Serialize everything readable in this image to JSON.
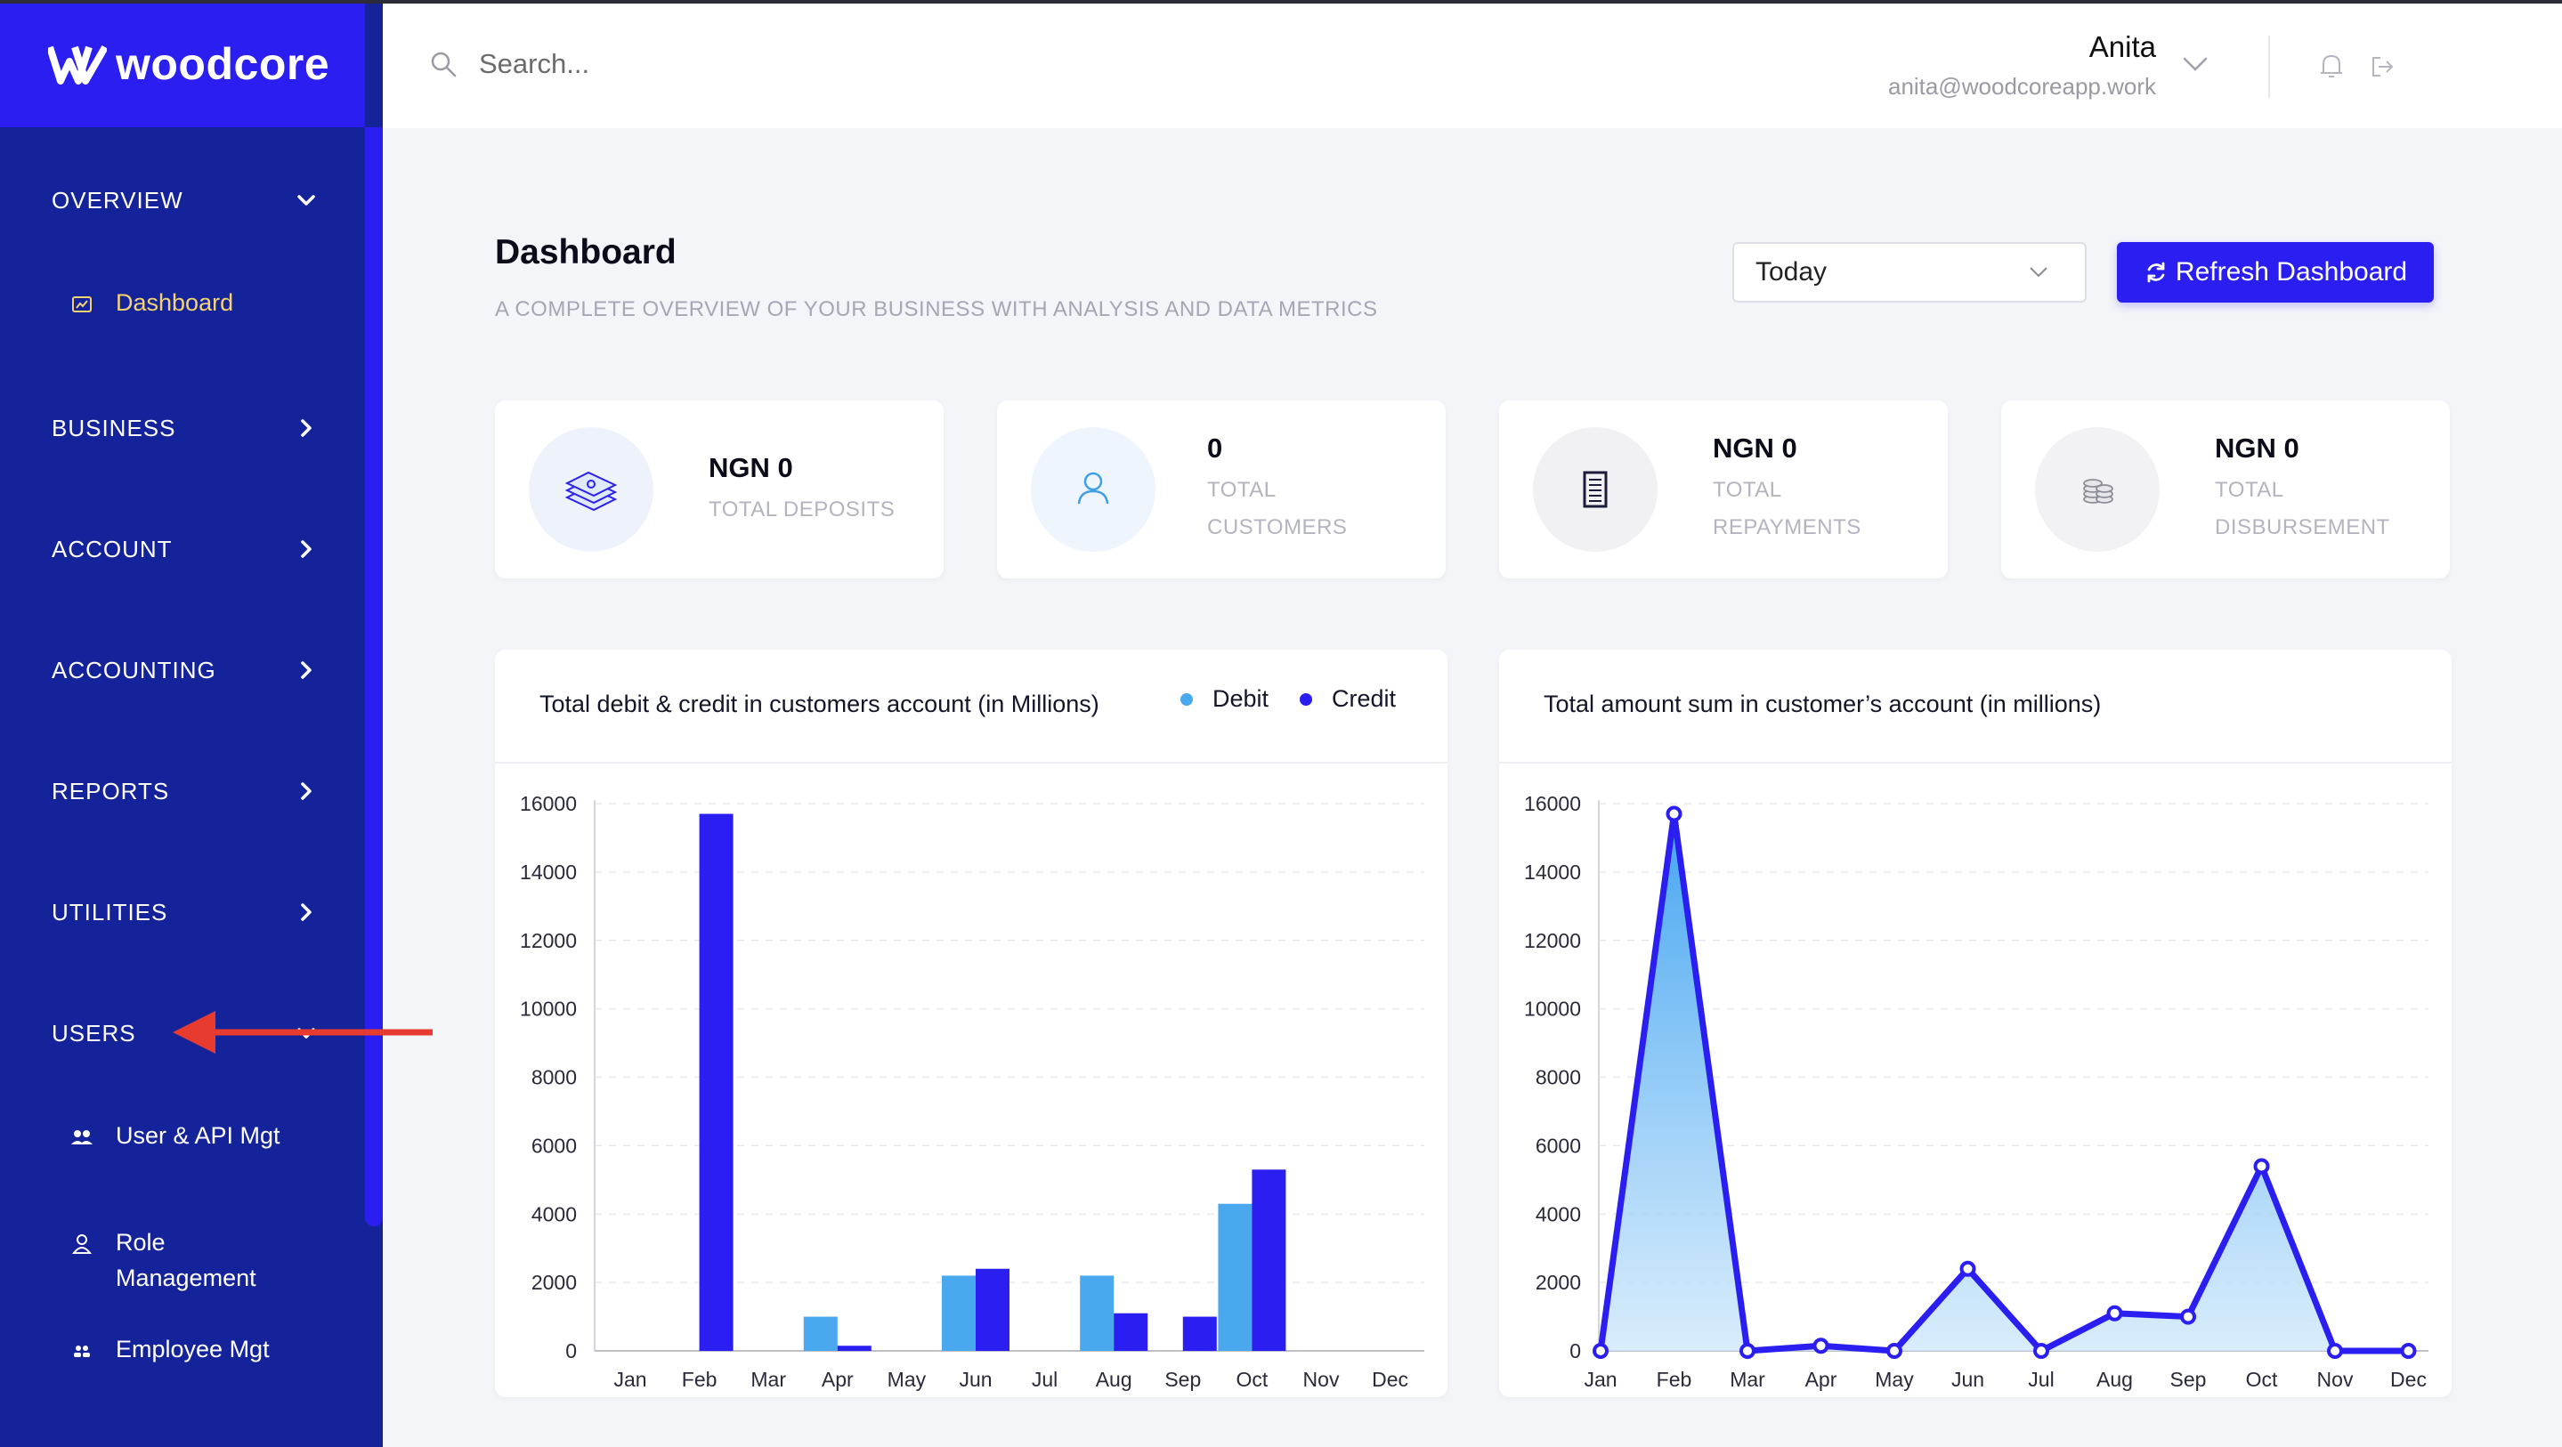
{
  "brand": {
    "name": "woodcore"
  },
  "sidebar": {
    "sections": [
      {
        "label": "OVERVIEW",
        "expanded": true
      },
      {
        "label": "BUSINESS",
        "expanded": false
      },
      {
        "label": "ACCOUNT",
        "expanded": false
      },
      {
        "label": "ACCOUNTING",
        "expanded": false
      },
      {
        "label": "REPORTS",
        "expanded": false
      },
      {
        "label": "UTILITIES",
        "expanded": false
      },
      {
        "label": "USERS",
        "expanded": true
      }
    ],
    "items": [
      {
        "label": "Dashboard",
        "icon": "chart-icon",
        "active": true
      },
      {
        "label": "User & API Mgt",
        "icon": "users-group-icon",
        "active": false
      },
      {
        "label": "Role Management",
        "icon": "user-role-icon",
        "active": false
      },
      {
        "label": "Employee Mgt",
        "icon": "employees-icon",
        "active": false
      }
    ]
  },
  "header": {
    "search_placeholder": "Search...",
    "user_name": "Anita",
    "user_email": "anita@woodcoreapp.work"
  },
  "page": {
    "title": "Dashboard",
    "subtitle": "A COMPLETE OVERVIEW OF YOUR BUSINESS WITH ANALYSIS AND DATA METRICS",
    "period": "Today",
    "refresh_label": "Refresh Dashboard"
  },
  "cards": [
    {
      "value": "NGN 0",
      "label_lines": [
        "TOTAL DEPOSITS"
      ],
      "icon": "cash-stack-icon"
    },
    {
      "value": "0",
      "label_lines": [
        "TOTAL",
        "CUSTOMERS"
      ],
      "icon": "user-icon"
    },
    {
      "value": "NGN 0",
      "label_lines": [
        "TOTAL",
        "REPAYMENTS"
      ],
      "icon": "document-icon"
    },
    {
      "value": "NGN 0",
      "label_lines": [
        "TOTAL",
        "DISBURSEMENT"
      ],
      "icon": "coins-icon"
    }
  ],
  "colors": {
    "brand": "#2a1ff0",
    "sidebar": "#15239a",
    "debit": "#4aa8ee",
    "credit": "#2a1ff0",
    "active_item": "#f5d372"
  },
  "chart_data": [
    {
      "type": "bar",
      "title": "Total debit & credit in customers account (in Millions)",
      "categories": [
        "Jan",
        "Feb",
        "Mar",
        "Apr",
        "May",
        "Jun",
        "Jul",
        "Aug",
        "Sep",
        "Oct",
        "Nov",
        "Dec"
      ],
      "series": [
        {
          "name": "Debit",
          "values": [
            0,
            0,
            0,
            1000,
            0,
            2200,
            0,
            2200,
            0,
            4300,
            0,
            0
          ]
        },
        {
          "name": "Credit",
          "values": [
            0,
            15700,
            0,
            150,
            0,
            2400,
            0,
            1100,
            1000,
            5300,
            0,
            0
          ]
        }
      ],
      "ylim": [
        0,
        16000
      ],
      "yticks": [
        0,
        2000,
        4000,
        6000,
        8000,
        10000,
        12000,
        14000,
        16000
      ],
      "legend": "top-right",
      "grid": true
    },
    {
      "type": "area",
      "title": "Total amount sum in customer’s account (in millions)",
      "categories": [
        "Jan",
        "Feb",
        "Mar",
        "Apr",
        "May",
        "Jun",
        "Jul",
        "Aug",
        "Sep",
        "Oct",
        "Nov",
        "Dec"
      ],
      "series": [
        {
          "values": [
            0,
            15700,
            0,
            150,
            0,
            2400,
            0,
            1100,
            1000,
            5400,
            0,
            0
          ]
        }
      ],
      "ylim": [
        0,
        16000
      ],
      "yticks": [
        0,
        2000,
        4000,
        6000,
        8000,
        10000,
        12000,
        14000,
        16000
      ],
      "grid": true
    }
  ]
}
